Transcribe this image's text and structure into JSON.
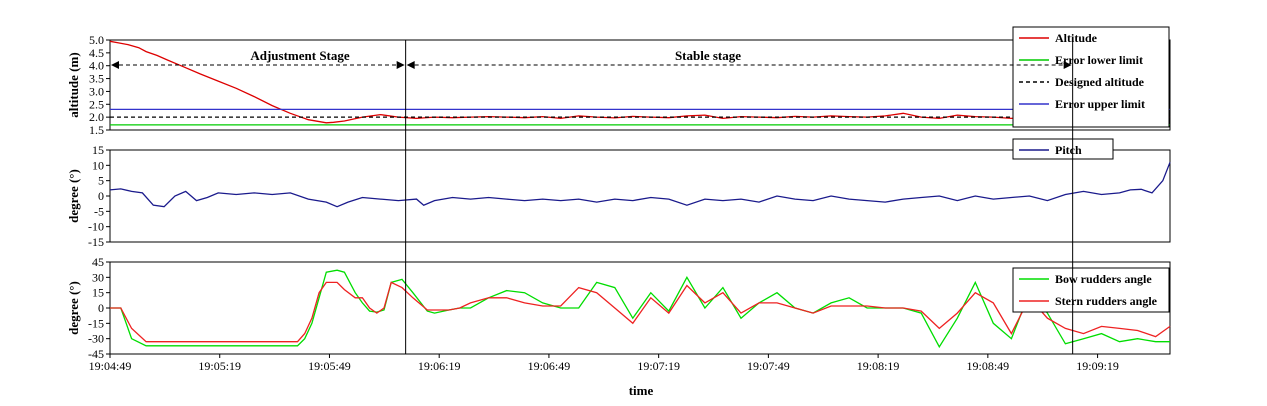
{
  "chart_data": [
    {
      "type": "line",
      "ylabel": "altitude (m)",
      "ylim": [
        1.5,
        5.0
      ],
      "yticks": [
        "5.0",
        "4.5",
        "4.0",
        "3.5",
        "3.0",
        "2.5",
        "2.0",
        "1.5"
      ],
      "legend_position": "top-right",
      "annotations": [
        "Adjustment Stage",
        "Stable stage"
      ],
      "series": [
        {
          "name": "Altitude",
          "color": "#dd0000",
          "x": [
            0,
            2,
            5,
            8,
            10,
            13,
            16,
            20,
            25,
            30,
            35,
            40,
            45,
            50,
            55,
            60,
            62,
            65,
            70,
            75,
            80,
            85,
            90,
            95,
            100,
            105,
            110,
            115,
            120,
            125,
            130,
            135,
            140,
            145,
            150,
            155,
            160,
            165,
            170,
            175,
            180,
            185,
            190,
            195,
            200,
            205,
            210,
            215,
            220,
            225,
            230,
            235,
            240,
            245,
            250,
            255,
            260,
            265,
            270,
            275,
            280,
            285,
            290,
            294
          ],
          "y": [
            4.95,
            4.9,
            4.82,
            4.7,
            4.55,
            4.4,
            4.22,
            3.98,
            3.68,
            3.4,
            3.12,
            2.8,
            2.45,
            2.15,
            1.9,
            1.78,
            1.8,
            1.85,
            2.0,
            2.1,
            2.0,
            1.95,
            2.0,
            1.98,
            2.0,
            2.02,
            2.0,
            1.98,
            2.02,
            1.95,
            2.05,
            2.0,
            1.97,
            2.03,
            2.0,
            1.98,
            2.05,
            2.08,
            1.95,
            2.02,
            2.0,
            1.98,
            2.03,
            2.0,
            2.05,
            2.02,
            2.0,
            2.05,
            2.15,
            2.0,
            1.95,
            2.08,
            2.02,
            2.0,
            1.95,
            2.05,
            2.1,
            2.05,
            2.0,
            2.12,
            2.05,
            2.1,
            2.08,
            2.0
          ]
        },
        {
          "name": "Error lower limit",
          "color": "#00cc00",
          "x": [
            0,
            294
          ],
          "y": [
            1.7,
            1.7
          ]
        },
        {
          "name": "Designed altitude",
          "color": "#000000",
          "dash": true,
          "x": [
            0,
            294
          ],
          "y": [
            2.0,
            2.0
          ]
        },
        {
          "name": "Error upper limit",
          "color": "#3333cc",
          "x": [
            0,
            294
          ],
          "y": [
            2.3,
            2.3
          ]
        }
      ]
    },
    {
      "type": "line",
      "ylabel": "degree (°)",
      "ylim": [
        -15,
        15
      ],
      "yticks": [
        "15",
        "10",
        "5",
        "0",
        "-5",
        "-10",
        "-15"
      ],
      "legend_position": "top-right",
      "series": [
        {
          "name": "Pitch",
          "color": "#1a1a8c",
          "x": [
            0,
            3,
            6,
            9,
            12,
            15,
            18,
            21,
            24,
            27,
            30,
            35,
            40,
            45,
            50,
            55,
            60,
            63,
            66,
            70,
            75,
            80,
            85,
            87,
            90,
            95,
            100,
            105,
            110,
            115,
            120,
            125,
            130,
            135,
            140,
            145,
            150,
            155,
            160,
            165,
            170,
            175,
            180,
            185,
            190,
            195,
            200,
            205,
            210,
            215,
            220,
            225,
            230,
            235,
            240,
            245,
            250,
            255,
            260,
            265,
            270,
            275,
            280,
            283,
            286,
            289,
            292,
            294
          ],
          "y": [
            2,
            2.3,
            1.5,
            1,
            -3,
            -3.5,
            0,
            1.5,
            -1.5,
            -0.5,
            1,
            0.5,
            1,
            0.5,
            1,
            -1,
            -2,
            -3.5,
            -2,
            -0.5,
            -1,
            -1.5,
            -1,
            -3,
            -1.5,
            -0.5,
            -1,
            -0.5,
            -1,
            -1.5,
            -1,
            -1.5,
            -1,
            -2,
            -1,
            -1.5,
            -0.5,
            -1,
            -3,
            -1,
            -1.5,
            -1,
            -2,
            0,
            -1,
            -1.5,
            0,
            -1,
            -1.5,
            -2,
            -1,
            -0.5,
            0,
            -1.5,
            0,
            -1,
            -0.5,
            0,
            -1.5,
            0.5,
            1.5,
            0.5,
            1,
            2,
            2.2,
            1,
            5,
            11
          ]
        }
      ]
    },
    {
      "type": "line",
      "ylabel": "degree (°)",
      "xlabel": "time",
      "ylim": [
        -45,
        45
      ],
      "yticks": [
        "45",
        "30",
        "15",
        "0",
        "-15",
        "-30",
        "-45"
      ],
      "categories": [
        "19:04:49",
        "19:05:19",
        "19:05:49",
        "19:06:19",
        "19:06:49",
        "19:07:19",
        "19:07:49",
        "19:08:19",
        "19:08:49",
        "19:09:19"
      ],
      "legend_position": "top-right",
      "series": [
        {
          "name": "Bow rudders angle",
          "color": "#00dd00",
          "x": [
            0,
            3,
            6,
            10,
            20,
            40,
            52,
            54,
            56,
            58,
            60,
            63,
            65,
            68,
            70,
            72,
            74,
            76,
            78,
            81,
            84,
            88,
            90,
            94,
            97,
            100,
            105,
            110,
            115,
            120,
            125,
            130,
            135,
            140,
            145,
            150,
            155,
            160,
            165,
            170,
            175,
            180,
            185,
            190,
            195,
            200,
            205,
            210,
            215,
            220,
            225,
            230,
            235,
            240,
            245,
            250,
            255,
            260,
            265,
            270,
            275,
            280,
            285,
            290,
            294
          ],
          "y": [
            0,
            0,
            -30,
            -37,
            -37,
            -37,
            -37,
            -30,
            -15,
            10,
            35,
            37,
            35,
            15,
            5,
            -3,
            -4,
            -2,
            25,
            28,
            15,
            -3,
            -5,
            -2,
            0,
            0,
            10,
            17,
            15,
            5,
            0,
            0,
            25,
            20,
            -10,
            15,
            -3,
            30,
            0,
            20,
            -10,
            5,
            15,
            0,
            -5,
            5,
            10,
            0,
            0,
            0,
            -5,
            -38,
            -10,
            25,
            -15,
            -30,
            15,
            -5,
            -35,
            -30,
            -25,
            -33,
            -30,
            -33,
            -33
          ]
        },
        {
          "name": "Stern rudders angle",
          "color": "#ee2222",
          "x": [
            0,
            3,
            6,
            10,
            20,
            40,
            52,
            54,
            56,
            58,
            60,
            63,
            65,
            68,
            70,
            72,
            74,
            76,
            78,
            81,
            84,
            88,
            90,
            94,
            97,
            100,
            105,
            110,
            115,
            120,
            125,
            130,
            135,
            140,
            145,
            150,
            155,
            160,
            165,
            170,
            175,
            180,
            185,
            190,
            195,
            200,
            205,
            210,
            215,
            220,
            225,
            230,
            235,
            240,
            245,
            250,
            255,
            260,
            265,
            270,
            275,
            280,
            285,
            290,
            294
          ],
          "y": [
            0,
            0,
            -20,
            -33,
            -33,
            -33,
            -33,
            -25,
            -10,
            15,
            25,
            25,
            18,
            10,
            10,
            0,
            -5,
            0,
            25,
            20,
            10,
            -2,
            -2,
            -2,
            0,
            5,
            10,
            10,
            5,
            2,
            2,
            20,
            15,
            0,
            -15,
            10,
            -5,
            22,
            5,
            15,
            -5,
            5,
            5,
            0,
            -5,
            2,
            2,
            2,
            0,
            0,
            -3,
            -20,
            -5,
            15,
            5,
            -25,
            10,
            -10,
            -20,
            -25,
            -18,
            -20,
            -22,
            -28,
            -18
          ]
        }
      ]
    }
  ]
}
